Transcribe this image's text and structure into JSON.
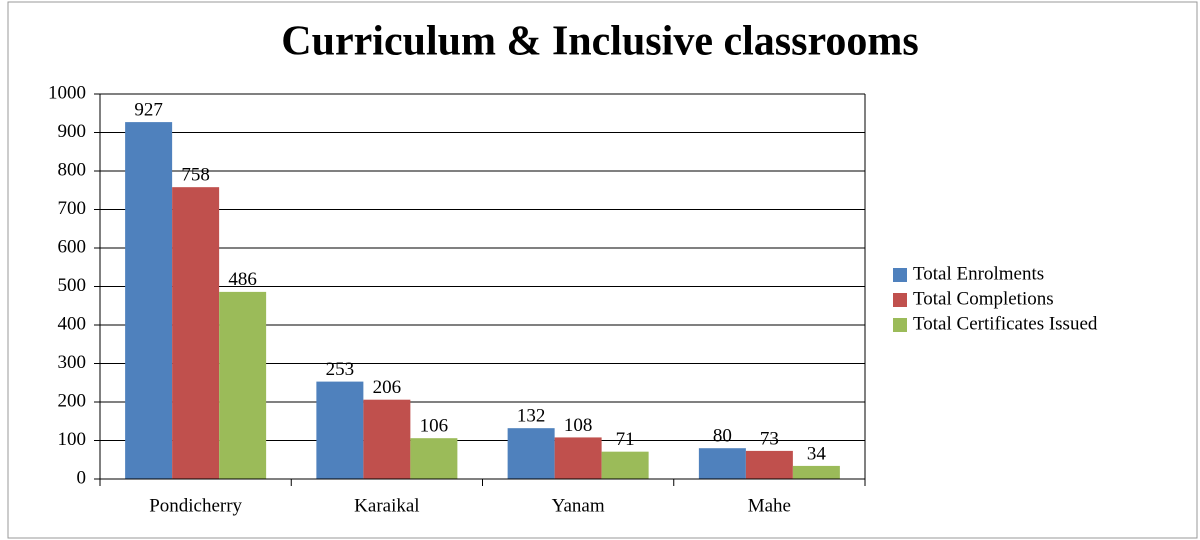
{
  "chart_data": {
    "type": "bar",
    "title": "Curriculum & Inclusive classrooms",
    "categories": [
      "Pondicherry",
      "Karaikal",
      "Yanam",
      "Mahe"
    ],
    "series": [
      {
        "name": "Total Enrolments",
        "color": "#4f81bd",
        "values": [
          927,
          253,
          132,
          80
        ]
      },
      {
        "name": "Total Completions",
        "color": "#c0504d",
        "values": [
          758,
          206,
          108,
          73
        ]
      },
      {
        "name": "Total Certificates Issued",
        "color": "#9bbb59",
        "values": [
          486,
          106,
          71,
          34
        ]
      }
    ],
    "ylim": [
      0,
      1000
    ],
    "yticks": [
      0,
      100,
      200,
      300,
      400,
      500,
      600,
      700,
      800,
      900,
      1000
    ],
    "grid": true,
    "legend": "right"
  }
}
